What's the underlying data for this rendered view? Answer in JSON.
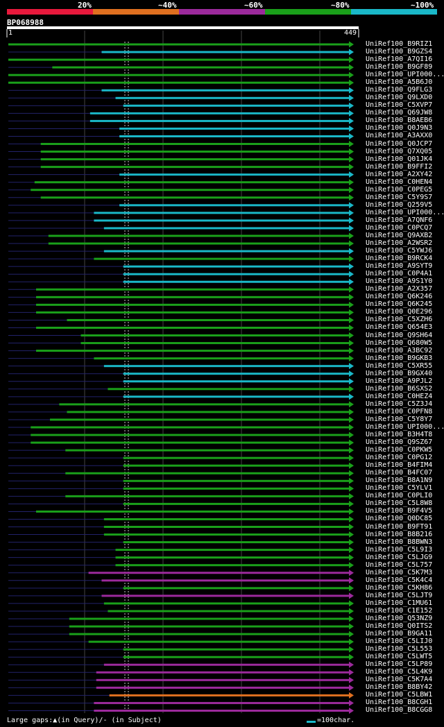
{
  "query": {
    "id": "BP068988",
    "start_label": "1",
    "end_label": "449",
    "length": 449
  },
  "identity_legend": [
    {
      "label": "20%",
      "color": "#e8193c"
    },
    {
      "label": "~40%",
      "color": "#e07020"
    },
    {
      "label": "~60%",
      "color": "#9c2a9c"
    },
    {
      "label": "~80%",
      "color": "#1aa01a"
    },
    {
      "label": "~100%",
      "color": "#1ab8c8"
    }
  ],
  "footer": {
    "gaps": "Large gaps:▲(in Query)/- (in Subject)",
    "scale": "=100char."
  },
  "chart_data": {
    "type": "alignment",
    "x_range": [
      1,
      449
    ],
    "hits": [
      {
        "name": "UniRef100_B9RIZ1",
        "start": 1,
        "end": 449,
        "class": 4
      },
      {
        "name": "UniRef100_B9GZS4",
        "start": 122,
        "end": 449,
        "class": 5
      },
      {
        "name": "UniRef100_A7QI16",
        "start": 1,
        "end": 449,
        "class": 4
      },
      {
        "name": "UniRef100_B9GF89",
        "start": 58,
        "end": 449,
        "class": 4
      },
      {
        "name": "UniRef100_UPI000...",
        "start": 1,
        "end": 449,
        "class": 4
      },
      {
        "name": "UniRef100_A5B6J0",
        "start": 1,
        "end": 449,
        "class": 4
      },
      {
        "name": "UniRef100_Q9FLG3",
        "start": 122,
        "end": 449,
        "class": 5
      },
      {
        "name": "UniRef100_Q9LXD0",
        "start": 140,
        "end": 449,
        "class": 5
      },
      {
        "name": "UniRef100_C5XVP7",
        "start": 150,
        "end": 449,
        "class": 5
      },
      {
        "name": "UniRef100_Q69JW8",
        "start": 107,
        "end": 449,
        "class": 5
      },
      {
        "name": "UniRef100_B8AEB6",
        "start": 107,
        "end": 449,
        "class": 5
      },
      {
        "name": "UniRef100_Q0J9N3",
        "start": 145,
        "end": 449,
        "class": 5
      },
      {
        "name": "UniRef100_A3AXX0",
        "start": 145,
        "end": 449,
        "class": 5
      },
      {
        "name": "UniRef100_Q0JCP7",
        "start": 43,
        "end": 449,
        "class": 4
      },
      {
        "name": "UniRef100_Q7XQ05",
        "start": 43,
        "end": 449,
        "class": 4
      },
      {
        "name": "UniRef100_Q01JK4",
        "start": 43,
        "end": 449,
        "class": 4
      },
      {
        "name": "UniRef100_B9FFI2",
        "start": 43,
        "end": 449,
        "class": 4
      },
      {
        "name": "UniRef100_A2XY42",
        "start": 145,
        "end": 449,
        "class": 5
      },
      {
        "name": "UniRef100_C0HEN4",
        "start": 35,
        "end": 449,
        "class": 4
      },
      {
        "name": "UniRef100_C0PEG5",
        "start": 30,
        "end": 449,
        "class": 4
      },
      {
        "name": "UniRef100_C5Y9S7",
        "start": 43,
        "end": 449,
        "class": 4
      },
      {
        "name": "UniRef100_Q259V5",
        "start": 145,
        "end": 449,
        "class": 5
      },
      {
        "name": "UniRef100_UPI000...",
        "start": 112,
        "end": 449,
        "class": 5
      },
      {
        "name": "UniRef100_A7QNF6",
        "start": 112,
        "end": 449,
        "class": 5
      },
      {
        "name": "UniRef100_C0PCQ7",
        "start": 125,
        "end": 449,
        "class": 5
      },
      {
        "name": "UniRef100_Q9AXB2",
        "start": 53,
        "end": 449,
        "class": 4
      },
      {
        "name": "UniRef100_A2WSR2",
        "start": 53,
        "end": 449,
        "class": 4
      },
      {
        "name": "UniRef100_C5YWJ6",
        "start": 125,
        "end": 449,
        "class": 5
      },
      {
        "name": "UniRef100_B9RCK4",
        "start": 112,
        "end": 449,
        "class": 4
      },
      {
        "name": "UniRef100_A9SYT9",
        "start": 150,
        "end": 449,
        "class": 5
      },
      {
        "name": "UniRef100_C0P4A1",
        "start": 150,
        "end": 449,
        "class": 5
      },
      {
        "name": "UniRef100_A9S1Y0",
        "start": 150,
        "end": 449,
        "class": 5
      },
      {
        "name": "UniRef100_A2X357",
        "start": 37,
        "end": 449,
        "class": 4
      },
      {
        "name": "UniRef100_Q6K246",
        "start": 37,
        "end": 449,
        "class": 4
      },
      {
        "name": "UniRef100_Q6K245",
        "start": 37,
        "end": 449,
        "class": 4
      },
      {
        "name": "UniRef100_Q0E296",
        "start": 37,
        "end": 449,
        "class": 4
      },
      {
        "name": "UniRef100_C5XZH6",
        "start": 77,
        "end": 449,
        "class": 4
      },
      {
        "name": "UniRef100_Q654E3",
        "start": 37,
        "end": 449,
        "class": 4
      },
      {
        "name": "UniRef100_Q9SH64",
        "start": 95,
        "end": 449,
        "class": 4
      },
      {
        "name": "UniRef100_Q680W5",
        "start": 95,
        "end": 449,
        "class": 4
      },
      {
        "name": "UniRef100_A3BC92",
        "start": 37,
        "end": 449,
        "class": 4
      },
      {
        "name": "UniRef100_B9GKB3",
        "start": 112,
        "end": 449,
        "class": 4
      },
      {
        "name": "UniRef100_C5XR55",
        "start": 125,
        "end": 449,
        "class": 5
      },
      {
        "name": "UniRef100_B9GX40",
        "start": 150,
        "end": 449,
        "class": 5
      },
      {
        "name": "UniRef100_A9PJL2",
        "start": 150,
        "end": 449,
        "class": 5
      },
      {
        "name": "UniRef100_B6SXS2",
        "start": 130,
        "end": 449,
        "class": 4
      },
      {
        "name": "UniRef100_C0HEZ4",
        "start": 150,
        "end": 449,
        "class": 5
      },
      {
        "name": "UniRef100_C5Z3J4",
        "start": 67,
        "end": 449,
        "class": 4
      },
      {
        "name": "UniRef100_C0PFN8",
        "start": 77,
        "end": 449,
        "class": 4
      },
      {
        "name": "UniRef100_C5Y8Y7",
        "start": 55,
        "end": 449,
        "class": 4
      },
      {
        "name": "UniRef100_UPI000...",
        "start": 30,
        "end": 449,
        "class": 4
      },
      {
        "name": "UniRef100_B3H4T8",
        "start": 30,
        "end": 449,
        "class": 4
      },
      {
        "name": "UniRef100_Q9SZ67",
        "start": 30,
        "end": 449,
        "class": 4
      },
      {
        "name": "UniRef100_C0PKW5",
        "start": 75,
        "end": 449,
        "class": 4
      },
      {
        "name": "UniRef100_C0PG12",
        "start": 150,
        "end": 449,
        "class": 4
      },
      {
        "name": "UniRef100_B4FIM4",
        "start": 150,
        "end": 449,
        "class": 4
      },
      {
        "name": "UniRef100_B4FC07",
        "start": 75,
        "end": 449,
        "class": 4
      },
      {
        "name": "UniRef100_B8A1N9",
        "start": 150,
        "end": 449,
        "class": 4
      },
      {
        "name": "UniRef100_C5YLV1",
        "start": 150,
        "end": 449,
        "class": 4
      },
      {
        "name": "UniRef100_C0PLI0",
        "start": 75,
        "end": 449,
        "class": 4
      },
      {
        "name": "UniRef100_C5L8W8",
        "start": 150,
        "end": 449,
        "class": 4
      },
      {
        "name": "UniRef100_B9F4V5",
        "start": 37,
        "end": 449,
        "class": 4
      },
      {
        "name": "UniRef100_Q0DC85",
        "start": 125,
        "end": 449,
        "class": 4
      },
      {
        "name": "UniRef100_B9FT91",
        "start": 125,
        "end": 449,
        "class": 4
      },
      {
        "name": "UniRef100_B8B216",
        "start": 125,
        "end": 449,
        "class": 4
      },
      {
        "name": "UniRef100_B8BWN3",
        "start": 150,
        "end": 449,
        "class": 4
      },
      {
        "name": "UniRef100_C5L9I3",
        "start": 140,
        "end": 449,
        "class": 4
      },
      {
        "name": "UniRef100_C5LJG9",
        "start": 140,
        "end": 449,
        "class": 4
      },
      {
        "name": "UniRef100_C5L757",
        "start": 140,
        "end": 449,
        "class": 4
      },
      {
        "name": "UniRef100_C5K7M3",
        "start": 105,
        "end": 449,
        "class": 3
      },
      {
        "name": "UniRef100_C5K4C4",
        "start": 122,
        "end": 449,
        "class": 3
      },
      {
        "name": "UniRef100_C5KH86",
        "start": 150,
        "end": 449,
        "class": 4
      },
      {
        "name": "UniRef100_C5LJT9",
        "start": 122,
        "end": 449,
        "class": 3
      },
      {
        "name": "UniRef100_C1MU61",
        "start": 125,
        "end": 449,
        "class": 4
      },
      {
        "name": "UniRef100_C1E152",
        "start": 130,
        "end": 449,
        "class": 4
      },
      {
        "name": "UniRef100_Q53NZ9",
        "start": 80,
        "end": 449,
        "class": 4
      },
      {
        "name": "UniRef100_Q0ITS2",
        "start": 80,
        "end": 449,
        "class": 4
      },
      {
        "name": "UniRef100_B9GA11",
        "start": 80,
        "end": 449,
        "class": 4
      },
      {
        "name": "UniRef100_C5LIJ0",
        "start": 105,
        "end": 449,
        "class": 4
      },
      {
        "name": "UniRef100_C5L553",
        "start": 150,
        "end": 449,
        "class": 4
      },
      {
        "name": "UniRef100_C5LWT5",
        "start": 150,
        "end": 449,
        "class": 4
      },
      {
        "name": "UniRef100_C5LP89",
        "start": 125,
        "end": 449,
        "class": 3
      },
      {
        "name": "UniRef100_C5L4K9",
        "start": 115,
        "end": 449,
        "class": 3
      },
      {
        "name": "UniRef100_C5K7A4",
        "start": 115,
        "end": 449,
        "class": 3
      },
      {
        "name": "UniRef100_B8BY42",
        "start": 115,
        "end": 449,
        "class": 3
      },
      {
        "name": "UniRef100_C5LBW1",
        "start": 132,
        "end": 449,
        "class": 2
      },
      {
        "name": "UniRef100_B8CGH1",
        "start": 112,
        "end": 449,
        "class": 3
      },
      {
        "name": "UniRef100_B8CGG8",
        "start": 112,
        "end": 449,
        "class": 3
      }
    ]
  }
}
